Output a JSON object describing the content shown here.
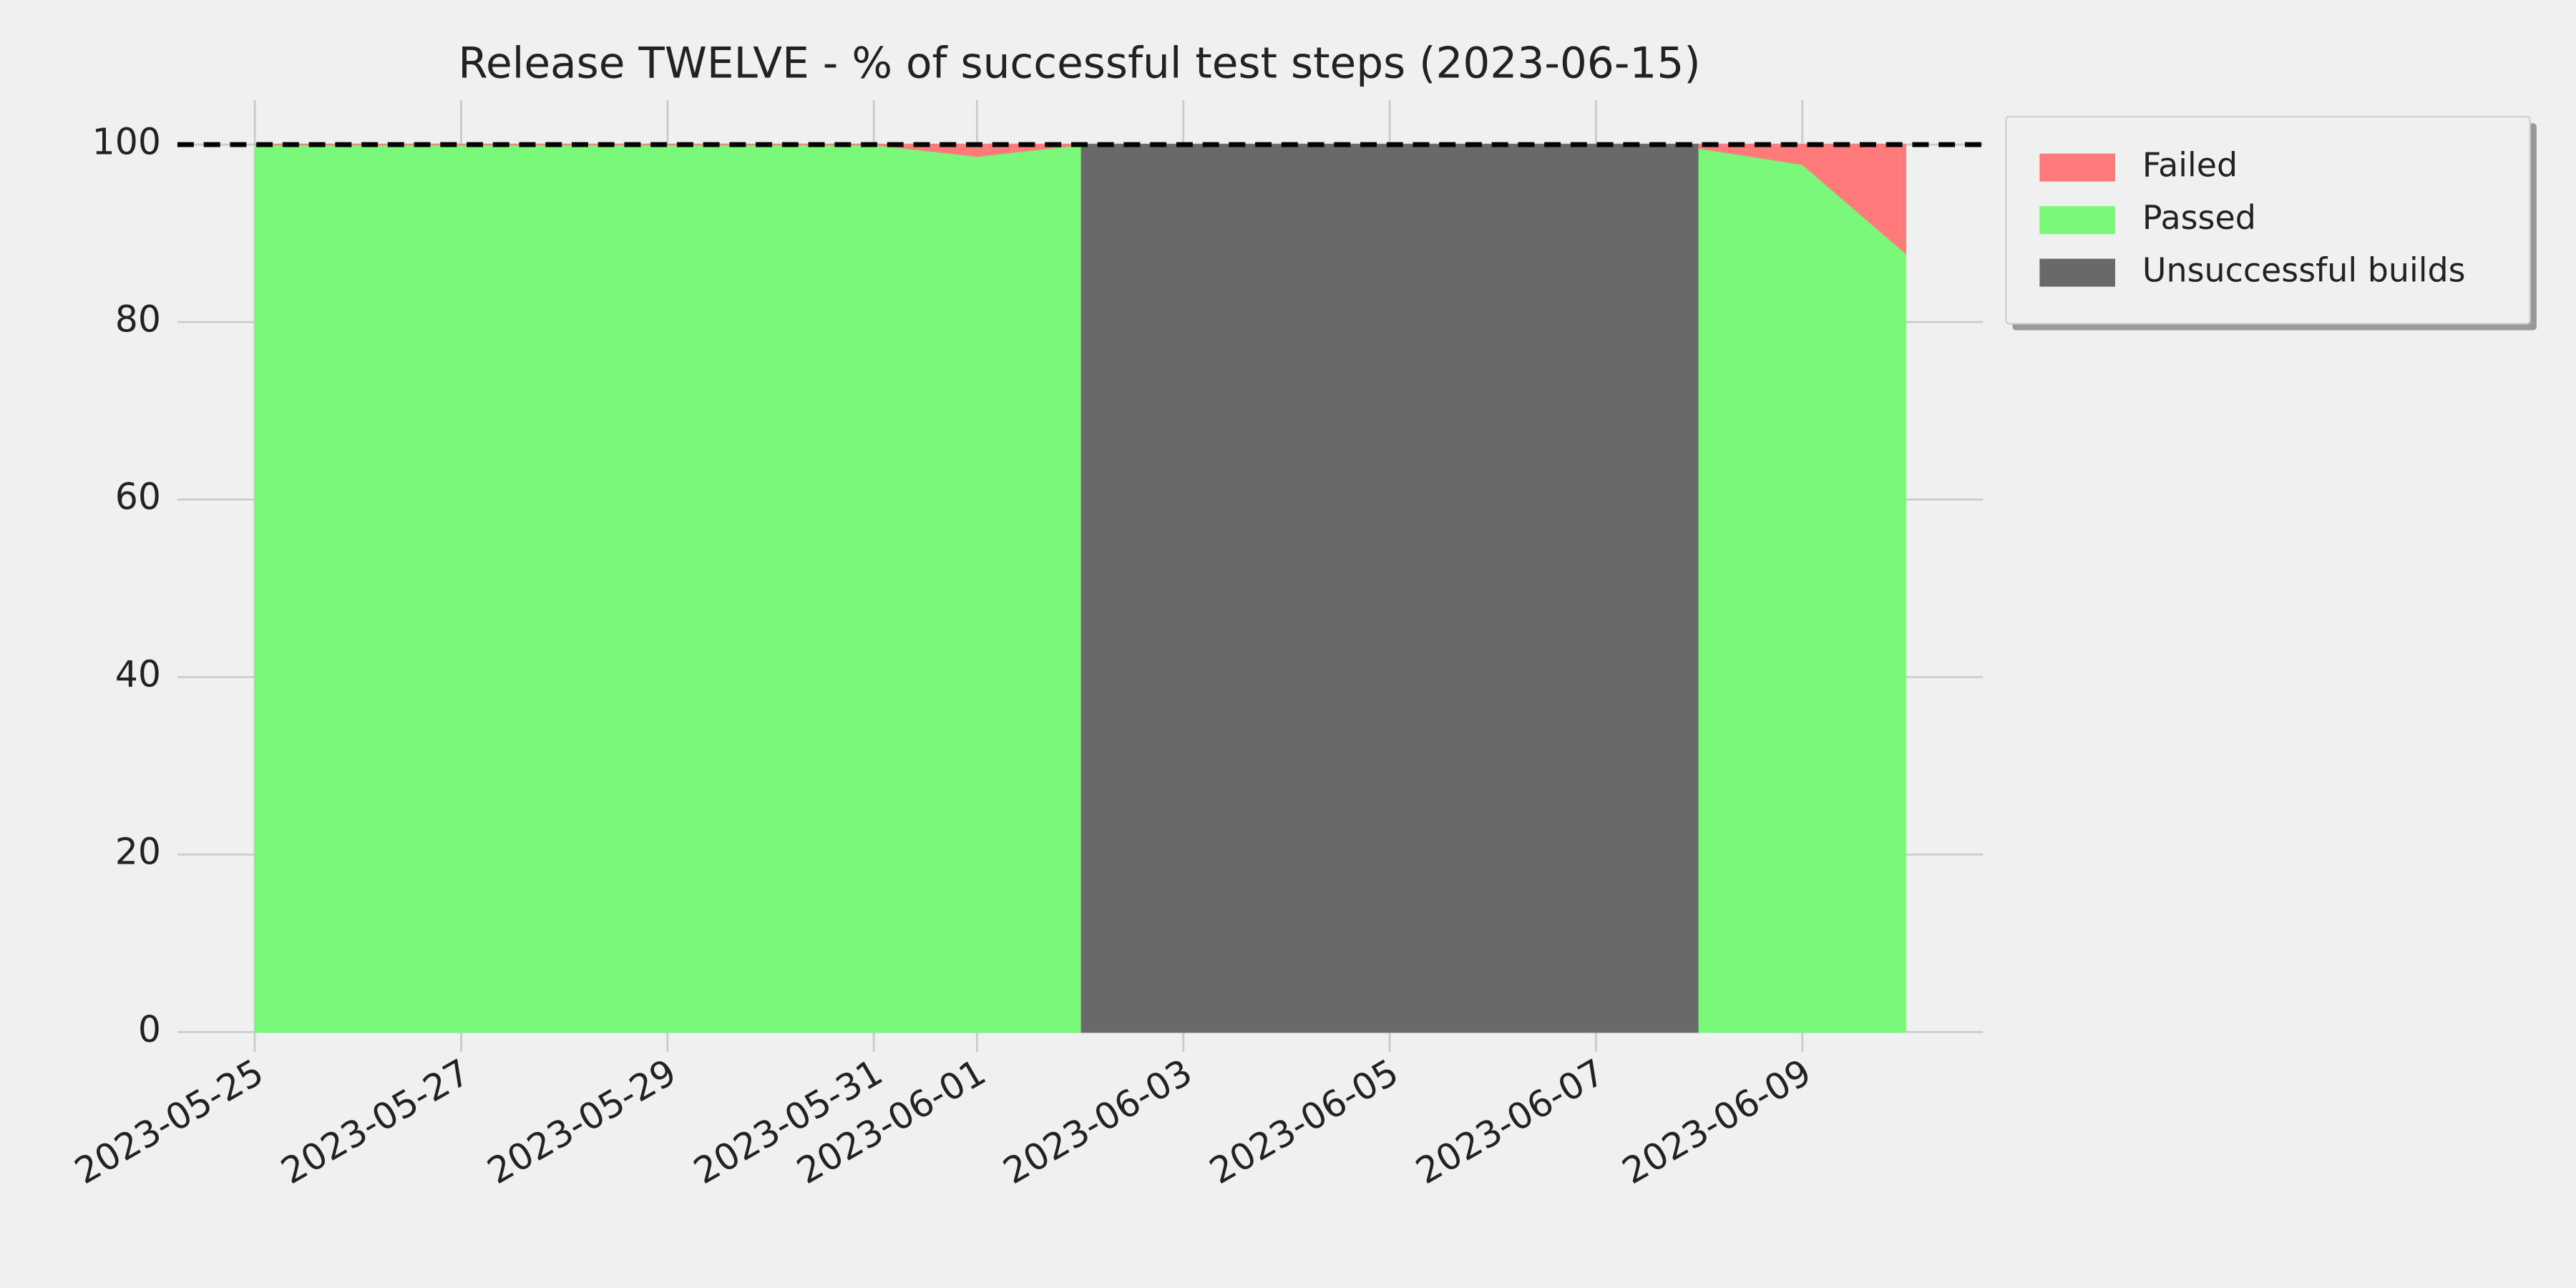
{
  "chart_data": {
    "type": "area",
    "title": "Release TWELVE - % of successful test steps (2023-06-15)",
    "x": [
      "2023-05-25",
      "2023-05-26",
      "2023-05-27",
      "2023-05-28",
      "2023-05-29",
      "2023-05-30",
      "2023-05-31",
      "2023-06-01",
      "2023-06-02",
      "2023-06-03",
      "2023-06-04",
      "2023-06-05",
      "2023-06-06",
      "2023-06-07",
      "2023-06-08",
      "2023-06-09",
      "2023-06-10"
    ],
    "series": [
      {
        "name": "Failed",
        "color": "#ff7b7b",
        "stack": true,
        "values": [
          0,
          0,
          0,
          0,
          0,
          0,
          0,
          1.3,
          0,
          null,
          null,
          null,
          null,
          null,
          0.4,
          2.2,
          12.2
        ]
      },
      {
        "name": "Passed",
        "color": "#7af87a",
        "stack": true,
        "values": [
          100,
          100,
          100,
          100,
          100,
          100,
          100,
          98.7,
          100,
          null,
          null,
          null,
          null,
          null,
          99.6,
          97.8,
          87.8
        ]
      },
      {
        "name": "Unsuccessful builds",
        "color": "#696969",
        "stack": false,
        "values": [
          null,
          null,
          null,
          null,
          null,
          null,
          null,
          null,
          100,
          100,
          100,
          100,
          100,
          100,
          100,
          null,
          null
        ]
      }
    ],
    "xlim": [
      "2023-05-24T06:00",
      "2023-06-10T18:00"
    ],
    "xticks": [
      "2023-05-25",
      "2023-05-27",
      "2023-05-29",
      "2023-05-31",
      "2023-06-01",
      "2023-06-03",
      "2023-06-05",
      "2023-06-07",
      "2023-06-09"
    ],
    "ylim": [
      -2,
      105
    ],
    "yticks": [
      0,
      20,
      40,
      60,
      80,
      100
    ],
    "hline": 100,
    "grid": true,
    "legend": "outside-upper-right"
  }
}
